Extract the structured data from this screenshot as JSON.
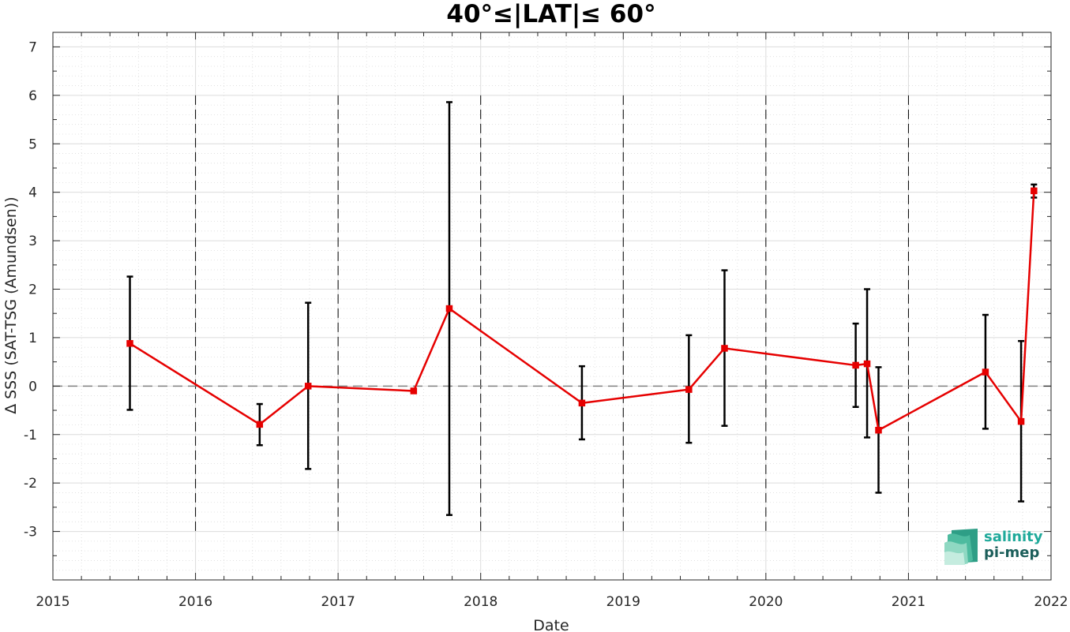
{
  "chart_data": {
    "type": "line",
    "title": "40°≤|LAT|≤ 60°",
    "xlabel": "Date",
    "ylabel": "∆ SSS (SAT-TSG (Amundsen))",
    "xlim": [
      2015,
      2022
    ],
    "ylim": [
      -4,
      7.3
    ],
    "x_ticks": [
      "2015",
      "2016",
      "2017",
      "2018",
      "2019",
      "2020",
      "2021",
      "2022"
    ],
    "y_ticks": [
      "-3",
      "-2",
      "-1",
      "0",
      "1",
      "2",
      "3",
      "4",
      "5",
      "6",
      "7"
    ],
    "grid": true,
    "minor_grid": true,
    "zero_line": 0,
    "year_separators": [
      2016,
      2017,
      2018,
      2019,
      2020,
      2021
    ],
    "series": [
      {
        "color": "#e60000",
        "x": [
          2015.54,
          2016.45,
          2016.79,
          2017.53,
          2017.78,
          2018.71,
          2019.46,
          2019.71,
          2020.63,
          2020.71,
          2020.79,
          2021.54,
          2021.79,
          2021.88
        ],
        "y": [
          0.88,
          -0.79,
          0.0,
          -0.1,
          1.6,
          -0.35,
          -0.07,
          0.78,
          0.43,
          0.46,
          -0.91,
          0.29,
          -0.73,
          4.03
        ],
        "err_low": [
          -0.49,
          -1.22,
          -1.71,
          null,
          -2.66,
          -1.1,
          -1.17,
          -0.82,
          -0.43,
          -1.06,
          -2.2,
          -0.88,
          -2.38,
          3.89
        ],
        "err_high": [
          2.26,
          -0.37,
          1.72,
          null,
          5.86,
          0.41,
          1.05,
          2.39,
          1.29,
          2.0,
          0.39,
          1.47,
          0.93,
          4.16
        ]
      }
    ]
  },
  "logo": {
    "line1": "salinity",
    "line2": "pi-mep",
    "color1": "#1fa99a",
    "color2": "#1b5e5a"
  },
  "colors": {
    "axis": "#262626",
    "grid": "#dcdcdc",
    "series": "#e60000",
    "errorbar": "#000000",
    "zero_line": "#808080"
  }
}
